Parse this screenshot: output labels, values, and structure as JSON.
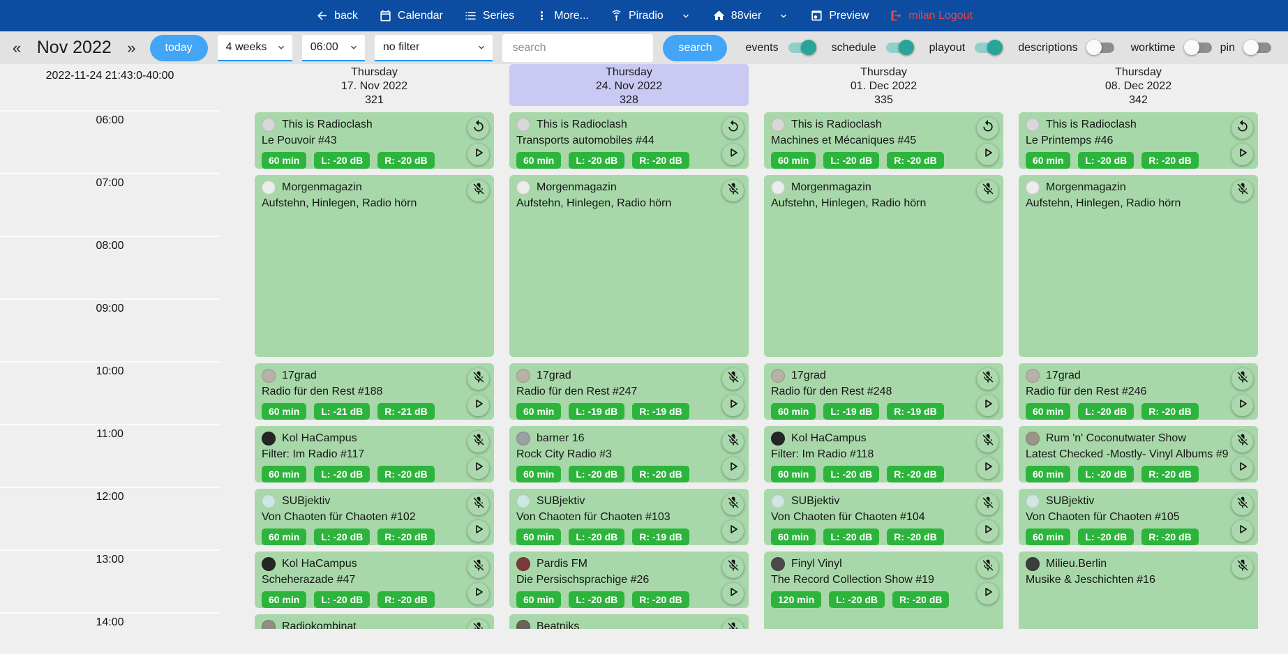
{
  "app": {
    "nav_blue": "#0c4da2",
    "accent_blue": "#42a5f5",
    "card_green": "#a8d8aa",
    "badge_green": "#2db43c",
    "toggle_teal": "#27a59a",
    "highlight_lavender": "#c9c9f3",
    "logout_red": "#e8483f"
  },
  "topnav": {
    "items": [
      {
        "icon": "arrow-left-icon",
        "label": "back"
      },
      {
        "icon": "calendar-icon",
        "label": "Calendar"
      },
      {
        "icon": "list-icon",
        "label": "Series"
      },
      {
        "icon": "kebab-icon",
        "label": "More..."
      },
      {
        "icon": "antenna-icon",
        "label": "Piradio",
        "caret": true
      },
      {
        "icon": "home-icon",
        "label": "88vier",
        "caret": true
      },
      {
        "icon": "preview-icon",
        "label": "Preview"
      },
      {
        "icon": "logout-icon",
        "label": "milan Logout",
        "danger": true
      }
    ]
  },
  "toolbar": {
    "prev_label": "«",
    "month_label": "Nov 2022",
    "next_label": "»",
    "today_label": "today",
    "range_value": "4 weeks",
    "time_value": "06:00",
    "filter_value": "no filter",
    "search_placeholder": "search",
    "search_label": "search",
    "toggles": [
      {
        "label": "events",
        "on": true
      },
      {
        "label": "schedule",
        "on": true
      },
      {
        "label": "playout",
        "on": true
      },
      {
        "label": "descriptions",
        "on": false
      },
      {
        "label": "worktime",
        "on": false
      },
      {
        "label": "pin",
        "on": false
      }
    ]
  },
  "timeline": {
    "now_label": "2022-11-24 21:43:0-40:00",
    "hours": [
      "06:00",
      "07:00",
      "08:00",
      "09:00",
      "10:00",
      "11:00",
      "12:00",
      "13:00",
      "14:00"
    ]
  },
  "columns": [
    {
      "weekday": "Thursday",
      "date": "17. Nov 2022",
      "day_number": "321",
      "highlighted": false,
      "events": [
        {
          "title": "This is Radioclash",
          "subtitle": "Le Pouvoir #43",
          "start": "06:00",
          "duration_min": 60,
          "badges": [
            "60 min",
            "L: -20 dB",
            "R: -20 dB"
          ],
          "icons": [
            "replay-icon",
            "play-icon"
          ],
          "avatar_color": "#d8d8d8"
        },
        {
          "title": "Morgenmagazin",
          "subtitle": "Aufstehn, Hinlegen, Radio hörn",
          "start": "07:00",
          "duration_min": 180,
          "badges": [],
          "icons": [
            "mic-off-icon"
          ],
          "avatar_color": "#ededed"
        },
        {
          "title": "17grad",
          "subtitle": "Radio für den Rest #188",
          "start": "10:00",
          "duration_min": 60,
          "badges": [
            "60 min",
            "L: -21 dB",
            "R: -21 dB"
          ],
          "icons": [
            "mic-off-icon",
            "play-icon"
          ],
          "avatar_color": "#b7b2a6"
        },
        {
          "title": "Kol HaCampus",
          "subtitle": "Filter: Im Radio #117",
          "start": "11:00",
          "duration_min": 60,
          "badges": [
            "60 min",
            "L: -20 dB",
            "R: -20 dB"
          ],
          "icons": [
            "mic-off-icon",
            "play-icon"
          ],
          "avatar_color": "#262626"
        },
        {
          "title": "SUBjektiv",
          "subtitle": "Von Chaoten für Chaoten #102",
          "start": "12:00",
          "duration_min": 60,
          "badges": [
            "60 min",
            "L: -20 dB",
            "R: -20 dB"
          ],
          "icons": [
            "mic-off-icon",
            "play-icon"
          ],
          "avatar_color": "#cfe7e3"
        },
        {
          "title": "Kol HaCampus",
          "subtitle": "Scheherazade #47",
          "start": "13:00",
          "duration_min": 60,
          "badges": [
            "60 min",
            "L: -20 dB",
            "R: -20 dB"
          ],
          "icons": [
            "mic-off-icon",
            "play-icon"
          ],
          "avatar_color": "#262626"
        },
        {
          "title": "Radiokombinat",
          "subtitle": "",
          "start": "14:00",
          "duration_min": 60,
          "badges": [],
          "icons": [
            "mic-off-icon",
            "play-icon"
          ],
          "avatar_color": "#8f8f85"
        }
      ]
    },
    {
      "weekday": "Thursday",
      "date": "24. Nov 2022",
      "day_number": "328",
      "highlighted": true,
      "events": [
        {
          "title": "This is Radioclash",
          "subtitle": "Transports automobiles #44",
          "start": "06:00",
          "duration_min": 60,
          "badges": [
            "60 min",
            "L: -20 dB",
            "R: -20 dB"
          ],
          "icons": [
            "replay-icon",
            "play-icon"
          ],
          "avatar_color": "#d8d8d8"
        },
        {
          "title": "Morgenmagazin",
          "subtitle": "Aufstehn, Hinlegen, Radio hörn",
          "start": "07:00",
          "duration_min": 180,
          "badges": [],
          "icons": [
            "mic-off-icon"
          ],
          "avatar_color": "#ededed"
        },
        {
          "title": "17grad",
          "subtitle": "Radio für den Rest #247",
          "start": "10:00",
          "duration_min": 60,
          "badges": [
            "60 min",
            "L: -19 dB",
            "R: -19 dB"
          ],
          "icons": [
            "mic-off-icon",
            "play-icon"
          ],
          "avatar_color": "#b7b2a6"
        },
        {
          "title": "barner 16",
          "subtitle": "Rock City Radio #3",
          "start": "11:00",
          "duration_min": 60,
          "badges": [
            "60 min",
            "L: -20 dB",
            "R: -20 dB"
          ],
          "icons": [
            "mic-off-icon",
            "play-icon"
          ],
          "avatar_color": "#9aa0a6"
        },
        {
          "title": "SUBjektiv",
          "subtitle": "Von Chaoten für Chaoten #103",
          "start": "12:00",
          "duration_min": 60,
          "badges": [
            "60 min",
            "L: -20 dB",
            "R: -19 dB"
          ],
          "icons": [
            "mic-off-icon",
            "play-icon"
          ],
          "avatar_color": "#cfe7e3"
        },
        {
          "title": "Pardis FM",
          "subtitle": "Die Persischsprachige #26",
          "start": "13:00",
          "duration_min": 60,
          "badges": [
            "60 min",
            "L: -20 dB",
            "R: -20 dB"
          ],
          "icons": [
            "mic-off-icon",
            "play-icon"
          ],
          "avatar_color": "#7a3b3b"
        },
        {
          "title": "Beatniks",
          "subtitle": "",
          "start": "14:00",
          "duration_min": 60,
          "badges": [],
          "icons": [
            "mic-off-icon",
            "play-icon"
          ],
          "avatar_color": "#6b6258"
        }
      ]
    },
    {
      "weekday": "Thursday",
      "date": "01. Dec 2022",
      "day_number": "335",
      "highlighted": false,
      "events": [
        {
          "title": "This is Radioclash",
          "subtitle": "Machines et Mécaniques #45",
          "start": "06:00",
          "duration_min": 60,
          "badges": [
            "60 min",
            "L: -20 dB",
            "R: -20 dB"
          ],
          "icons": [
            "replay-icon",
            "play-icon"
          ],
          "avatar_color": "#d8d8d8"
        },
        {
          "title": "Morgenmagazin",
          "subtitle": "Aufstehn, Hinlegen, Radio hörn",
          "start": "07:00",
          "duration_min": 180,
          "badges": [],
          "icons": [
            "mic-off-icon"
          ],
          "avatar_color": "#ededed"
        },
        {
          "title": "17grad",
          "subtitle": "Radio für den Rest #248",
          "start": "10:00",
          "duration_min": 60,
          "badges": [
            "60 min",
            "L: -19 dB",
            "R: -19 dB"
          ],
          "icons": [
            "mic-off-icon",
            "play-icon"
          ],
          "avatar_color": "#b7b2a6"
        },
        {
          "title": "Kol HaCampus",
          "subtitle": "Filter: Im Radio #118",
          "start": "11:00",
          "duration_min": 60,
          "badges": [
            "60 min",
            "L: -20 dB",
            "R: -20 dB"
          ],
          "icons": [
            "mic-off-icon",
            "play-icon"
          ],
          "avatar_color": "#262626"
        },
        {
          "title": "SUBjektiv",
          "subtitle": "Von Chaoten für Chaoten #104",
          "start": "12:00",
          "duration_min": 60,
          "badges": [
            "60 min",
            "L: -20 dB",
            "R: -20 dB"
          ],
          "icons": [
            "mic-off-icon",
            "play-icon"
          ],
          "avatar_color": "#cfe7e3"
        },
        {
          "title": "Finyl Vinyl",
          "subtitle": "The Record Collection Show #19",
          "start": "13:00",
          "duration_min": 120,
          "badges": [
            "120 min",
            "L: -20 dB",
            "R: -20 dB"
          ],
          "icons": [
            "mic-off-icon",
            "play-icon"
          ],
          "avatar_color": "#4a4a4a"
        }
      ]
    },
    {
      "weekday": "Thursday",
      "date": "08. Dec 2022",
      "day_number": "342",
      "highlighted": false,
      "events": [
        {
          "title": "This is Radioclash",
          "subtitle": "Le Printemps #46",
          "start": "06:00",
          "duration_min": 60,
          "badges": [
            "60 min",
            "L: -20 dB",
            "R: -20 dB"
          ],
          "icons": [
            "replay-icon",
            "play-icon"
          ],
          "avatar_color": "#d8d8d8"
        },
        {
          "title": "Morgenmagazin",
          "subtitle": "Aufstehn, Hinlegen, Radio hörn",
          "start": "07:00",
          "duration_min": 180,
          "badges": [],
          "icons": [
            "mic-off-icon"
          ],
          "avatar_color": "#ededed"
        },
        {
          "title": "17grad",
          "subtitle": "Radio für den Rest #246",
          "start": "10:00",
          "duration_min": 60,
          "badges": [
            "60 min",
            "L: -20 dB",
            "R: -20 dB"
          ],
          "icons": [
            "mic-off-icon",
            "play-icon"
          ],
          "avatar_color": "#b7b2a6"
        },
        {
          "title": "Rum 'n' Coconutwater Show",
          "subtitle": "Latest Checked -Mostly- Vinyl Albums #9",
          "start": "11:00",
          "duration_min": 60,
          "badges": [
            "60 min",
            "L: -20 dB",
            "R: -20 dB"
          ],
          "icons": [
            "mic-off-icon",
            "play-icon"
          ],
          "avatar_color": "#9c9484"
        },
        {
          "title": "SUBjektiv",
          "subtitle": "Von Chaoten für Chaoten #105",
          "start": "12:00",
          "duration_min": 60,
          "badges": [
            "60 min",
            "L: -20 dB",
            "R: -20 dB"
          ],
          "icons": [
            "mic-off-icon",
            "play-icon"
          ],
          "avatar_color": "#cfe7e3"
        },
        {
          "title": "Milieu.Berlin",
          "subtitle": "Musike & Jeschichten #16",
          "start": "13:00",
          "duration_min": 120,
          "badges": [],
          "icons": [
            "mic-off-icon"
          ],
          "avatar_color": "#3c3c3c"
        }
      ]
    }
  ]
}
